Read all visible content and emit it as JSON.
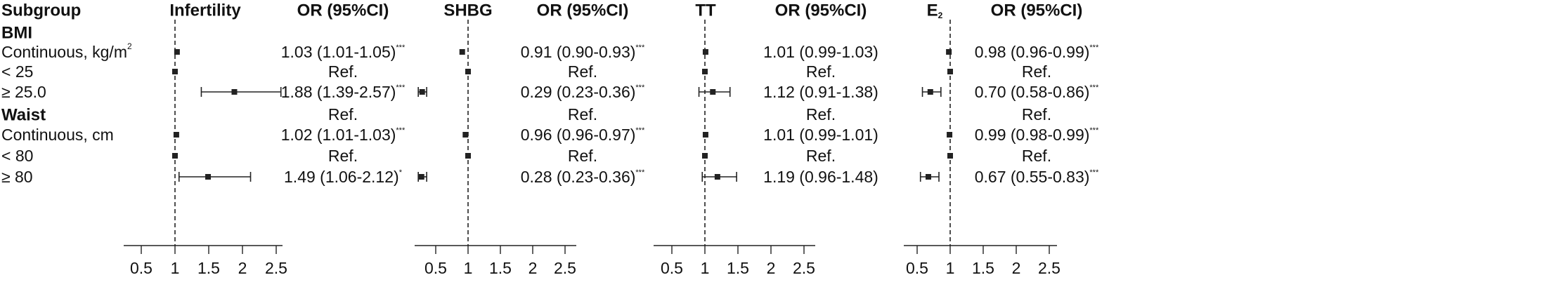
{
  "headers": {
    "subgroup": "Subgroup",
    "or_label": "OR (95%CI)"
  },
  "rows": [
    {
      "label": "BMI",
      "bold": true
    },
    {
      "label": "Continuous, kg/m",
      "sup": "2"
    },
    {
      "label": "< 25"
    },
    {
      "label": "≥ 25.0"
    },
    {
      "label": "Waist",
      "bold": true
    },
    {
      "label": "Continuous, cm"
    },
    {
      "label": "< 80"
    },
    {
      "label": "≥ 80"
    }
  ],
  "chart_data": [
    {
      "type": "forest",
      "title": "Infertility",
      "xlim": [
        0.25,
        2.6
      ],
      "xticks": [
        "0.5",
        "1",
        "1.5",
        "2",
        "2.5"
      ],
      "reference_line": 1,
      "points": [
        null,
        {
          "or": 1.03,
          "lo": 1.01,
          "hi": 1.05,
          "text": "1.03 (1.01-1.05)",
          "sig": "***"
        },
        {
          "or": 1,
          "ref": true,
          "text": "Ref."
        },
        {
          "or": 1.88,
          "lo": 1.39,
          "hi": 2.57,
          "text": "1.88 (1.39-2.57)",
          "sig": "***"
        },
        {
          "text": "Ref."
        },
        {
          "or": 1.02,
          "lo": 1.01,
          "hi": 1.03,
          "text": "1.02 (1.01-1.03)",
          "sig": "***"
        },
        {
          "or": 1,
          "ref": true,
          "text": "Ref."
        },
        {
          "or": 1.49,
          "lo": 1.06,
          "hi": 2.12,
          "text": "1.49 (1.06-2.12)",
          "sig": "*"
        }
      ]
    },
    {
      "type": "forest",
      "title": "SHBG",
      "xlim": [
        0.25,
        2.6
      ],
      "xticks": [
        "0.5",
        "1",
        "1.5",
        "2",
        "2.5"
      ],
      "reference_line": 1,
      "points": [
        null,
        {
          "or": 0.91,
          "lo": 0.9,
          "hi": 0.93,
          "text": "0.91 (0.90-0.93)",
          "sig": "***"
        },
        {
          "or": 1,
          "ref": true,
          "text": "Ref."
        },
        {
          "or": 0.29,
          "lo": 0.23,
          "hi": 0.36,
          "text": "0.29 (0.23-0.36)",
          "sig": "***"
        },
        {
          "text": "Ref."
        },
        {
          "or": 0.96,
          "lo": 0.96,
          "hi": 0.97,
          "text": "0.96 (0.96-0.97)",
          "sig": "***"
        },
        {
          "or": 1,
          "ref": true,
          "text": "Ref."
        },
        {
          "or": 0.28,
          "lo": 0.23,
          "hi": 0.36,
          "text": "0.28 (0.23-0.36)",
          "sig": "***"
        }
      ]
    },
    {
      "type": "forest",
      "title": "TT",
      "xlim": [
        0.25,
        2.6
      ],
      "xticks": [
        "0.5",
        "1",
        "1.5",
        "2",
        "2.5"
      ],
      "reference_line": 1,
      "points": [
        null,
        {
          "or": 1.01,
          "lo": 0.99,
          "hi": 1.03,
          "text": "1.01 (0.99-1.03)",
          "sig": ""
        },
        {
          "or": 1,
          "ref": true,
          "text": "Ref."
        },
        {
          "or": 1.12,
          "lo": 0.91,
          "hi": 1.38,
          "text": "1.12 (0.91-1.38)",
          "sig": ""
        },
        {
          "text": "Ref."
        },
        {
          "or": 1.01,
          "lo": 0.99,
          "hi": 1.01,
          "text": "1.01 (0.99-1.01)",
          "sig": ""
        },
        {
          "or": 1,
          "ref": true,
          "text": "Ref."
        },
        {
          "or": 1.19,
          "lo": 0.96,
          "hi": 1.48,
          "text": "1.19 (0.96-1.48)",
          "sig": ""
        }
      ]
    },
    {
      "type": "forest",
      "title": "E",
      "title_sub": "2",
      "xlim": [
        0.25,
        2.6
      ],
      "xticks": [
        "0.5",
        "1",
        "1.5",
        "2",
        "2.5"
      ],
      "reference_line": 1,
      "points": [
        null,
        {
          "or": 0.98,
          "lo": 0.96,
          "hi": 0.99,
          "text": "0.98 (0.96-0.99)",
          "sig": "***"
        },
        {
          "or": 1,
          "ref": true,
          "text": "Ref."
        },
        {
          "or": 0.7,
          "lo": 0.58,
          "hi": 0.86,
          "text": "0.70 (0.58-0.86)",
          "sig": "***"
        },
        {
          "text": "Ref."
        },
        {
          "or": 0.99,
          "lo": 0.98,
          "hi": 0.99,
          "text": "0.99 (0.98-0.99)",
          "sig": "***"
        },
        {
          "or": 1,
          "ref": true,
          "text": "Ref."
        },
        {
          "or": 0.67,
          "lo": 0.55,
          "hi": 0.83,
          "text": "0.67 (0.55-0.83)",
          "sig": "***"
        }
      ]
    }
  ]
}
